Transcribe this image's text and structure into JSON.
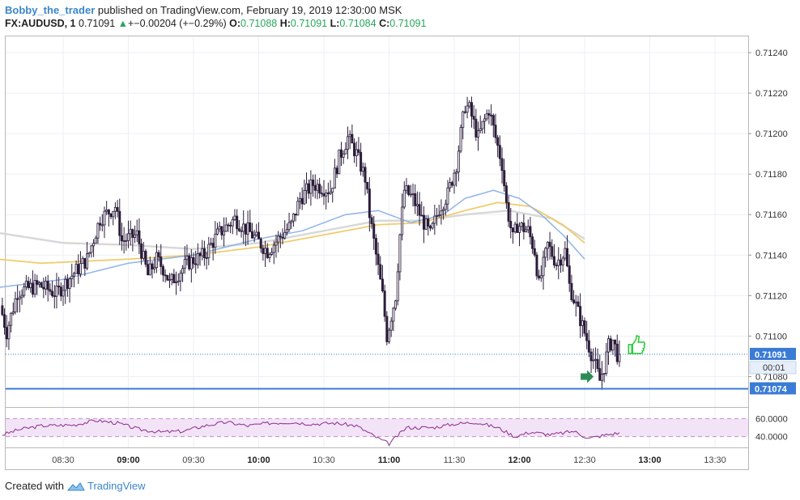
{
  "header": {
    "author": "Bobby_the_trader",
    "published_text": "published on TradingView.com, February 19, 2019 12:30:00 MSK"
  },
  "symbol_line": {
    "symbol": "FX:AUDUSD, 1",
    "last": "0.71091",
    "up_arrow": "▲",
    "change": "+−0.00204 (+−0.29%)",
    "o_label": "O:",
    "o_value": "0.71088",
    "h_label": "H:",
    "h_value": "0.71091",
    "l_label": "L:",
    "l_value": "0.71084",
    "c_label": "C:",
    "c_value": "0.71091"
  },
  "footer": {
    "created_with": "Created with",
    "brand": "TradingView"
  },
  "colors": {
    "up_candle": "#f0f0f5",
    "down_candle": "#2b1d3a",
    "candle_wick": "#2b1d3a",
    "ma_fast": "#8fb4e8",
    "ma_mid": "#f0cc6e",
    "ma_slow": "#d8d8d8",
    "support_line": "#3a7bd5",
    "price_line": "#3a7bd5",
    "rsi_line": "#8b2c8b",
    "rsi_band": "#f3e3f7",
    "thumb": "#2ecc40",
    "arrow": "#2e8b57"
  },
  "chart_data": {
    "type": "candlestick",
    "symbol": "FX:AUDUSD",
    "timeframe": "1 minute",
    "x_tick_labels": [
      "08:30",
      "09:00",
      "09:30",
      "10:00",
      "10:30",
      "11:00",
      "11:30",
      "12:00",
      "12:30",
      "13:00",
      "13:30"
    ],
    "x_tick_bold": [
      "09:00",
      "10:00",
      "11:00",
      "12:00",
      "13:00"
    ],
    "y_tick_labels": [
      "0.71240",
      "0.71220",
      "0.71200",
      "0.71180",
      "0.71160",
      "0.71140",
      "0.71120",
      "0.71100",
      "0.71080"
    ],
    "ylim": [
      0.71065,
      0.71248
    ],
    "current_price_label": "0.71091",
    "countdown_label": "00:01",
    "support_label": "0.71074",
    "support_level": 0.71074,
    "current_price": 0.71091,
    "price_anchors": [
      [
        "08:02",
        0.71115
      ],
      [
        "08:05",
        0.71102
      ],
      [
        "08:10",
        0.71122
      ],
      [
        "08:20",
        0.71125
      ],
      [
        "08:28",
        0.71121
      ],
      [
        "08:35",
        0.7113
      ],
      [
        "08:42",
        0.71138
      ],
      [
        "08:48",
        0.71158
      ],
      [
        "08:55",
        0.71164
      ],
      [
        "08:58",
        0.71147
      ],
      [
        "09:05",
        0.7115
      ],
      [
        "09:10",
        0.7113
      ],
      [
        "09:14",
        0.71138
      ],
      [
        "09:18",
        0.71132
      ],
      [
        "09:20",
        0.71126
      ],
      [
        "09:28",
        0.71136
      ],
      [
        "09:36",
        0.7114
      ],
      [
        "09:42",
        0.7115
      ],
      [
        "09:50",
        0.71158
      ],
      [
        "09:58",
        0.7115
      ],
      [
        "10:05",
        0.71142
      ],
      [
        "10:10",
        0.71148
      ],
      [
        "10:16",
        0.71155
      ],
      [
        "10:20",
        0.71168
      ],
      [
        "10:26",
        0.71175
      ],
      [
        "10:34",
        0.71172
      ],
      [
        "10:38",
        0.71188
      ],
      [
        "10:42",
        0.71198
      ],
      [
        "10:46",
        0.7119
      ],
      [
        "10:50",
        0.71178
      ],
      [
        "10:52",
        0.7116
      ],
      [
        "10:55",
        0.7114
      ],
      [
        "10:58",
        0.7112
      ],
      [
        "11:00",
        0.711
      ],
      [
        "11:04",
        0.7112
      ],
      [
        "11:06",
        0.7115
      ],
      [
        "11:08",
        0.71172
      ],
      [
        "11:12",
        0.71168
      ],
      [
        "11:16",
        0.71158
      ],
      [
        "11:20",
        0.7115
      ],
      [
        "11:24",
        0.71163
      ],
      [
        "11:28",
        0.7117
      ],
      [
        "11:32",
        0.71185
      ],
      [
        "11:34",
        0.712
      ],
      [
        "11:36",
        0.71214
      ],
      [
        "11:38",
        0.71212
      ],
      [
        "11:42",
        0.71198
      ],
      [
        "11:44",
        0.71204
      ],
      [
        "11:47",
        0.71212
      ],
      [
        "11:50",
        0.71198
      ],
      [
        "11:53",
        0.71185
      ],
      [
        "11:55",
        0.71165
      ],
      [
        "11:58",
        0.71148
      ],
      [
        "12:00",
        0.71155
      ],
      [
        "12:05",
        0.71152
      ],
      [
        "12:08",
        0.71142
      ],
      [
        "12:10",
        0.71125
      ],
      [
        "12:14",
        0.71145
      ],
      [
        "12:18",
        0.71136
      ],
      [
        "12:22",
        0.71142
      ],
      [
        "12:24",
        0.71125
      ],
      [
        "12:27",
        0.71115
      ],
      [
        "12:30",
        0.71105
      ],
      [
        "12:33",
        0.71095
      ],
      [
        "12:36",
        0.71085
      ],
      [
        "12:38",
        0.71078
      ],
      [
        "12:40",
        0.71085
      ],
      [
        "12:42",
        0.71095
      ],
      [
        "12:44",
        0.71098
      ],
      [
        "12:46",
        0.71091
      ]
    ],
    "ma_fast": [
      [
        "08:00",
        0.71124
      ],
      [
        "08:30",
        0.71128
      ],
      [
        "09:00",
        0.71136
      ],
      [
        "09:30",
        0.7114
      ],
      [
        "10:00",
        0.71148
      ],
      [
        "10:20",
        0.71152
      ],
      [
        "10:40",
        0.7116
      ],
      [
        "10:55",
        0.71162
      ],
      [
        "11:10",
        0.71156
      ],
      [
        "11:25",
        0.7116
      ],
      [
        "11:35",
        0.71168
      ],
      [
        "11:48",
        0.71172
      ],
      [
        "12:00",
        0.71168
      ],
      [
        "12:10",
        0.7116
      ],
      [
        "12:20",
        0.7115
      ],
      [
        "12:30",
        0.71138
      ]
    ],
    "ma_mid": [
      [
        "08:00",
        0.71138
      ],
      [
        "08:20",
        0.71136
      ],
      [
        "08:40",
        0.71137
      ],
      [
        "09:00",
        0.71138
      ],
      [
        "09:30",
        0.7114
      ],
      [
        "10:00",
        0.71144
      ],
      [
        "10:30",
        0.7115
      ],
      [
        "10:55",
        0.71155
      ],
      [
        "11:15",
        0.71156
      ],
      [
        "11:35",
        0.71162
      ],
      [
        "11:50",
        0.71166
      ],
      [
        "12:05",
        0.71164
      ],
      [
        "12:20",
        0.71155
      ],
      [
        "12:30",
        0.71146
      ]
    ],
    "ma_slow": [
      [
        "08:00",
        0.71151
      ],
      [
        "08:30",
        0.71146
      ],
      [
        "09:00",
        0.71145
      ],
      [
        "09:30",
        0.71143
      ],
      [
        "10:00",
        0.71146
      ],
      [
        "10:30",
        0.71152
      ],
      [
        "10:55",
        0.71157
      ],
      [
        "11:15",
        0.71157
      ],
      [
        "11:35",
        0.7116
      ],
      [
        "11:55",
        0.71162
      ],
      [
        "12:15",
        0.71158
      ],
      [
        "12:30",
        0.71148
      ]
    ],
    "rsi": {
      "y_tick_labels": [
        "60.0000",
        "40.0000"
      ],
      "upper": 60,
      "lower": 40,
      "ylim": [
        28,
        72
      ],
      "anchors": [
        [
          "08:02",
          42
        ],
        [
          "08:10",
          48
        ],
        [
          "08:20",
          52
        ],
        [
          "08:35",
          53
        ],
        [
          "08:45",
          58
        ],
        [
          "08:55",
          55
        ],
        [
          "09:05",
          48
        ],
        [
          "09:15",
          45
        ],
        [
          "09:25",
          46
        ],
        [
          "09:35",
          52
        ],
        [
          "09:45",
          56
        ],
        [
          "09:55",
          52
        ],
        [
          "10:05",
          55
        ],
        [
          "10:15",
          56
        ],
        [
          "10:25",
          54
        ],
        [
          "10:35",
          55
        ],
        [
          "10:45",
          52
        ],
        [
          "10:55",
          38
        ],
        [
          "11:00",
          32
        ],
        [
          "11:08",
          50
        ],
        [
          "11:20",
          50
        ],
        [
          "11:30",
          54
        ],
        [
          "11:40",
          56
        ],
        [
          "11:50",
          50
        ],
        [
          "11:58",
          40
        ],
        [
          "12:05",
          45
        ],
        [
          "12:15",
          42
        ],
        [
          "12:25",
          46
        ],
        [
          "12:32",
          38
        ],
        [
          "12:40",
          42
        ],
        [
          "12:46",
          44
        ]
      ]
    }
  }
}
